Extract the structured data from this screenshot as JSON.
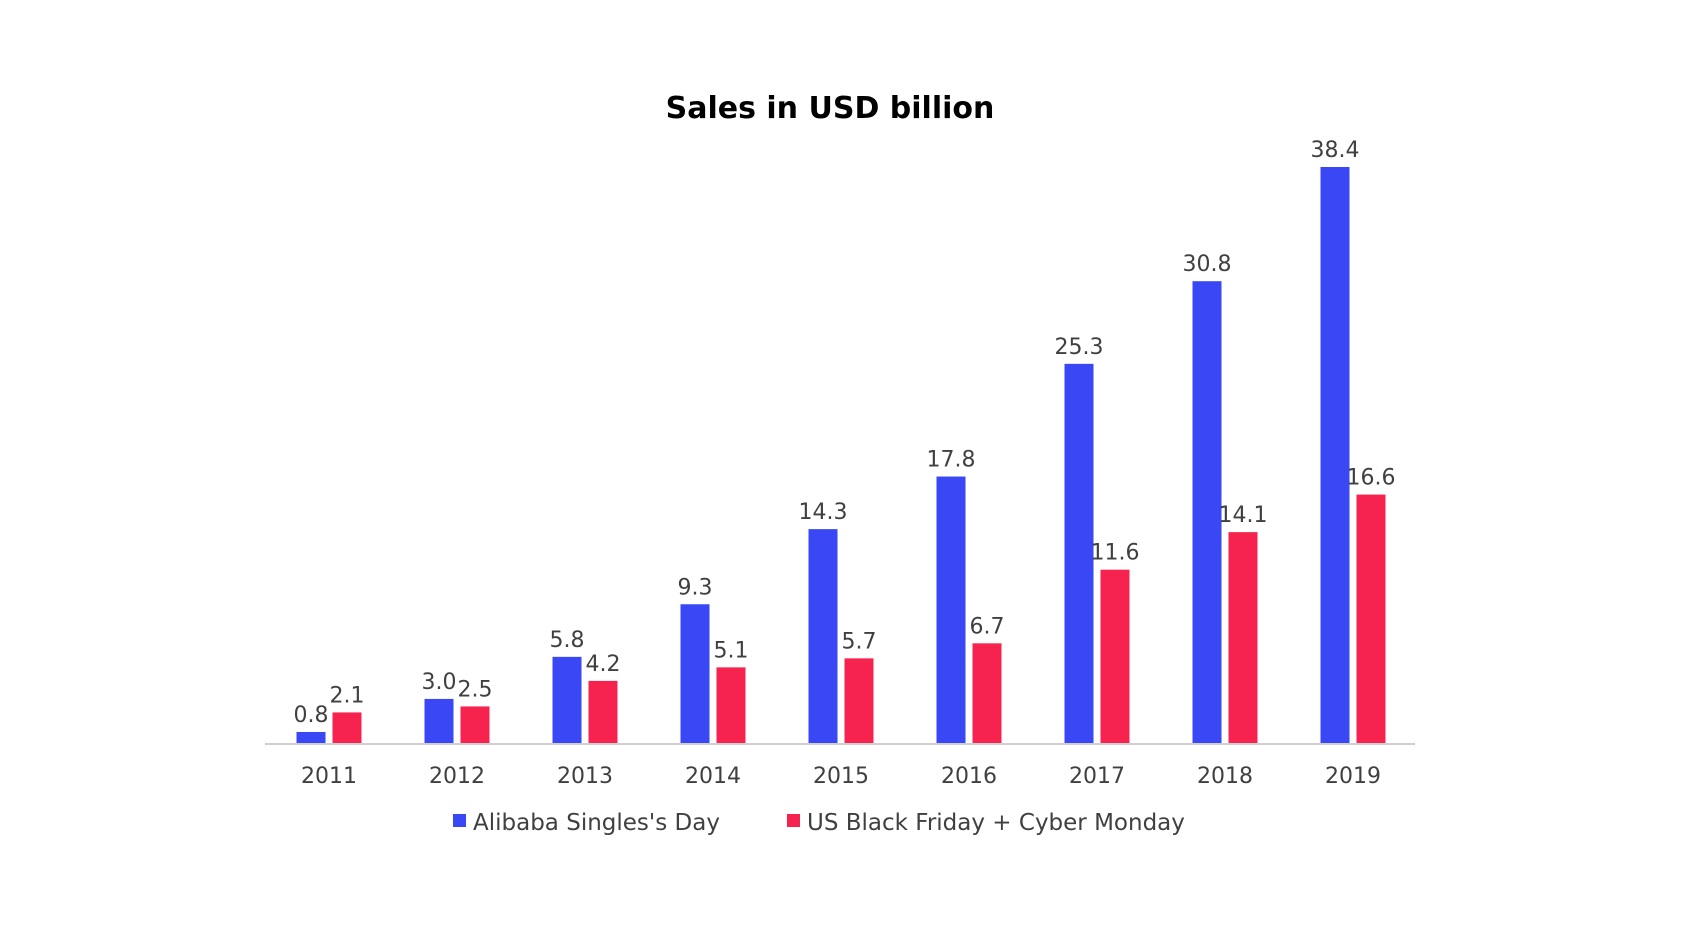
{
  "chart_data": {
    "type": "bar",
    "title": "Sales in USD billion",
    "categories": [
      "2011",
      "2012",
      "2013",
      "2014",
      "2015",
      "2016",
      "2017",
      "2018",
      "2019"
    ],
    "series": [
      {
        "name": "Alibaba Singles's Day",
        "color": "#3a47f5",
        "values": [
          0.8,
          3.0,
          5.8,
          9.3,
          14.3,
          17.8,
          25.3,
          30.8,
          38.4
        ],
        "labels": [
          "0.8",
          "3.0",
          "5.8",
          "9.3",
          "14.3",
          "17.8",
          "25.3",
          "30.8",
          "38.4"
        ]
      },
      {
        "name": "US Black Friday + Cyber Monday",
        "color": "#f5234d",
        "values": [
          2.1,
          2.5,
          4.2,
          5.1,
          5.7,
          6.7,
          11.6,
          14.1,
          16.6
        ],
        "labels": [
          "2.1",
          "2.5",
          "4.2",
          "5.1",
          "5.7",
          "6.7",
          "11.6",
          "14.1",
          "16.6"
        ]
      }
    ],
    "ylim": [
      0,
      38.4
    ],
    "grid": false,
    "legend": "bottom",
    "axis_color": "#d0d0d0"
  }
}
